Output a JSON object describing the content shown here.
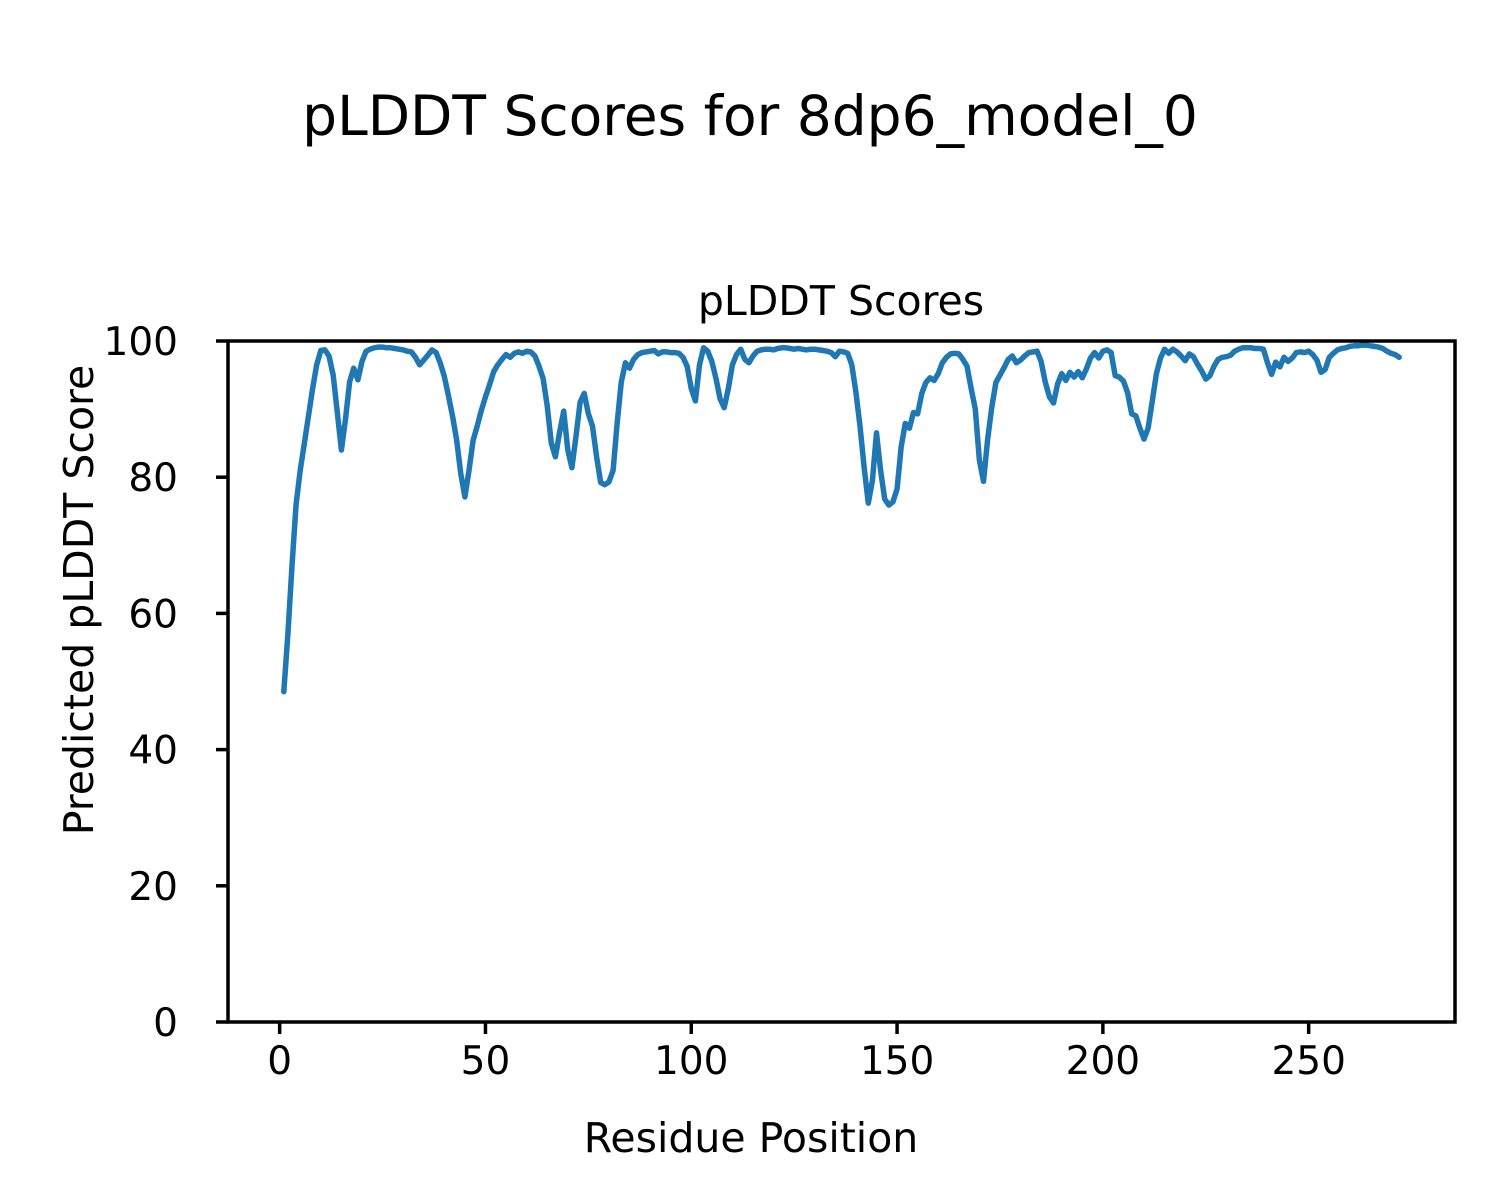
{
  "figure": {
    "suptitle": "pLDDT Scores for 8dp6_model_0",
    "background": "#ffffff"
  },
  "chart_data": {
    "type": "line",
    "title": "pLDDT Scores",
    "xlabel": "Residue Position",
    "ylabel": "Predicted pLDDT Score",
    "xlim": [
      -12.55,
      285.55
    ],
    "ylim": [
      0,
      100
    ],
    "x_ticks": [
      0,
      50,
      100,
      150,
      200,
      250
    ],
    "y_ticks": [
      0,
      20,
      40,
      60,
      80,
      100
    ],
    "grid": false,
    "legend": "none",
    "line_color": "#1f77b4",
    "axis_color": "#000000",
    "series": [
      {
        "name": "pLDDT",
        "x_first": 1,
        "x_step": 1,
        "y": [
          48.5,
          57,
          67,
          76,
          81,
          85,
          89,
          93,
          96.5,
          98.6,
          98.7,
          97.8,
          95,
          89.5,
          84,
          88.5,
          94,
          96,
          94.3,
          97,
          98.5,
          98.8,
          99,
          99.1,
          99.1,
          99,
          99,
          98.9,
          98.8,
          98.7,
          98.5,
          98.4,
          97.6,
          96.5,
          97.2,
          97.9,
          98.7,
          98.3,
          96.8,
          94.8,
          92,
          89,
          85.5,
          80.5,
          77.1,
          81,
          85.4,
          87.5,
          89.8,
          91.8,
          93.6,
          95.5,
          96.5,
          97.3,
          98,
          97.6,
          98.2,
          98.4,
          98.2,
          98.5,
          98.4,
          97.8,
          96.3,
          94.5,
          90.5,
          85,
          83,
          86.5,
          89.7,
          84,
          81.4,
          86,
          91,
          92.3,
          89.3,
          87.5,
          83,
          79.2,
          78.9,
          79.3,
          81,
          88,
          94,
          96.8,
          96,
          97.3,
          98,
          98.3,
          98.4,
          98.5,
          98.6,
          98.1,
          98.4,
          98.4,
          98.3,
          98.3,
          98.2,
          97.6,
          96.3,
          93,
          91.2,
          96.5,
          99,
          98.5,
          97,
          94.5,
          91.5,
          90.2,
          93,
          96.5,
          98,
          98.8,
          97.3,
          96.8,
          97.8,
          98.5,
          98.7,
          98.8,
          98.8,
          98.7,
          98.9,
          99,
          99,
          98.9,
          98.8,
          98.9,
          98.8,
          98.7,
          98.8,
          98.8,
          98.7,
          98.6,
          98.5,
          98.3,
          97.7,
          98.5,
          98.4,
          98.2,
          96.5,
          92.5,
          87.5,
          81.5,
          76.2,
          79.5,
          86.5,
          81,
          76.8,
          75.9,
          76.4,
          78.3,
          84.5,
          87.9,
          87.2,
          89.5,
          89.3,
          92.3,
          93.9,
          94.6,
          94.2,
          95.2,
          96.8,
          97.6,
          98.1,
          98.2,
          98.1,
          97.3,
          96.3,
          93,
          90,
          82.5,
          79.4,
          85.5,
          90.2,
          93.9,
          95,
          96.1,
          97.3,
          97.8,
          96.8,
          97.2,
          97.8,
          98.3,
          98.4,
          98.5,
          97,
          94,
          91.8,
          90.9,
          93.7,
          95.2,
          94.2,
          95.4,
          94.7,
          95.5,
          94.6,
          95.9,
          97.5,
          98.3,
          97.5,
          98.5,
          98.7,
          98.3,
          94.9,
          94.7,
          94.1,
          92.4,
          89.3,
          89,
          87.2,
          85.6,
          87.2,
          91.2,
          95.2,
          97.5,
          98.8,
          98.2,
          98.8,
          98.4,
          97.8,
          97.1,
          98.1,
          97.7,
          96.6,
          95.6,
          94.4,
          94.9,
          96.3,
          97.3,
          97.6,
          97.7,
          97.9,
          98.5,
          98.8,
          99,
          99,
          99,
          98.9,
          98.9,
          98.8,
          96.8,
          95.1,
          96.9,
          96.2,
          97.6,
          97,
          97.5,
          98.3,
          98.4,
          98.3,
          98.5,
          98,
          97.2,
          95.4,
          95.8,
          97.6,
          98.2,
          98.7,
          98.9,
          99,
          99.2,
          99.3,
          99.3,
          99.4,
          99.4,
          99.3,
          99.2,
          99.1,
          98.9,
          98.5,
          98.2,
          98,
          97.6
        ]
      }
    ]
  }
}
